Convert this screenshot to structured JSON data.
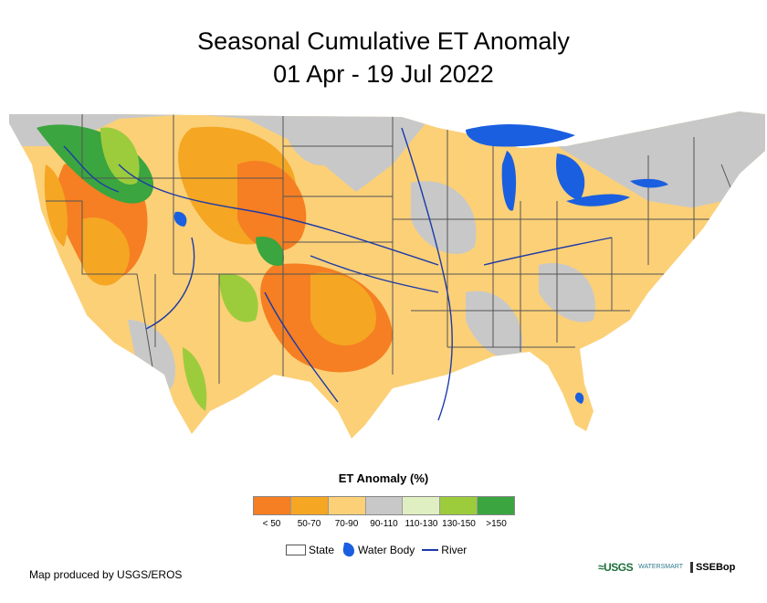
{
  "title": {
    "line1": "Seasonal Cumulative ET Anomaly",
    "line2": "01 Apr - 19 Jul 2022"
  },
  "legend": {
    "title": "ET Anomaly (%)",
    "classes": [
      {
        "label": "< 50",
        "color": "#f57f22"
      },
      {
        "label": "50-70",
        "color": "#f5a623"
      },
      {
        "label": "70-90",
        "color": "#fcd077"
      },
      {
        "label": "90-110",
        "color": "#c8c8c8"
      },
      {
        "label": "110-130",
        "color": "#e0efc2"
      },
      {
        "label": "130-150",
        "color": "#9ccc3c"
      },
      {
        "label": ">150",
        "color": "#3ba53f"
      }
    ],
    "keys": {
      "state": "State",
      "water": "Water Body",
      "river": "River"
    }
  },
  "colors": {
    "water": "#1a5fe0",
    "river": "#1c3aa8",
    "boundary": "#555555"
  },
  "credit": "Map produced by USGS/EROS",
  "logos": {
    "usgs": "≈USGS",
    "smart": "WATERSMART",
    "ssebop": "SSEBop"
  }
}
